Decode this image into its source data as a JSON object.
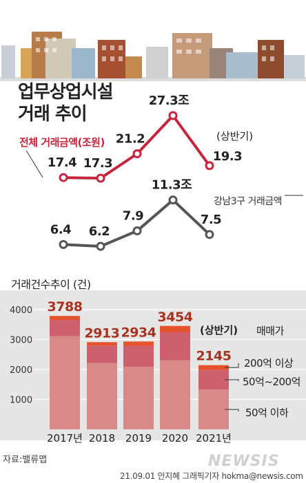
{
  "chart_data": [
    {
      "type": "line",
      "title": "업무상업시설 거래 추이",
      "categories": [
        "2017년",
        "2018",
        "2019",
        "2020",
        "2021년"
      ],
      "series": [
        {
          "name": "전체 거래금액(조원)",
          "values": [
            17.4,
            17.3,
            21.2,
            27.3,
            19.3
          ]
        },
        {
          "name": "강남3구 거래금액",
          "values": [
            6.4,
            6.2,
            7.9,
            11.3,
            7.5
          ]
        }
      ],
      "value_labels": {
        "total": [
          "17.4",
          "17.3",
          "21.2",
          "27.3조",
          "19.3"
        ],
        "gangnam": [
          "6.4",
          "6.2",
          "7.9",
          "11.3조",
          "7.5"
        ]
      },
      "annotation": "(상반기)"
    },
    {
      "type": "bar",
      "title": "거래건수추이 (건)",
      "categories": [
        "2017년",
        "2018",
        "2019",
        "2020",
        "2021년"
      ],
      "stacked": true,
      "series": [
        {
          "name": "50억 이하",
          "values": [
            3110,
            2215,
            2090,
            2305,
            1330
          ]
        },
        {
          "name": "50억~200억",
          "values": [
            545,
            583,
            694,
            939,
            655
          ]
        },
        {
          "name": "200억 이상",
          "values": [
            133,
            115,
            150,
            210,
            160
          ]
        }
      ],
      "totals": [
        3788,
        2913,
        2934,
        3454,
        2145
      ],
      "yticks": [
        1000,
        2000,
        3000,
        4000
      ],
      "ylim": [
        0,
        4300
      ],
      "legend_title": "매매가",
      "annotation": "(상반기)"
    }
  ],
  "labels": {
    "title_lines": [
      "업무상업시설",
      "거래 추이"
    ],
    "total_series": "전체 거래금액(조원)",
    "gangnam_series": "강남3구 거래금액",
    "half_year": "(상반기)",
    "count_title": "거래건수추이 (건)",
    "legend_title": "매매가",
    "legend_top": "200억 이상",
    "legend_mid": "50억~200억",
    "legend_bottom": "50억 이하"
  },
  "footer": {
    "source": "자료:밸류맵",
    "credit": "21.09.01 안지혜 그래픽기자 hokma@newsis.com",
    "watermark": "NEWSIS"
  },
  "colors": {
    "line_total": "#c8243c",
    "line_gangnam": "#555555",
    "bar_bottom": "#d98a88",
    "bar_mid": "#cd5f6e",
    "bar_top": "#e6522a",
    "total_label": "#a8321e",
    "panel_bg": "#e6e6e6"
  }
}
